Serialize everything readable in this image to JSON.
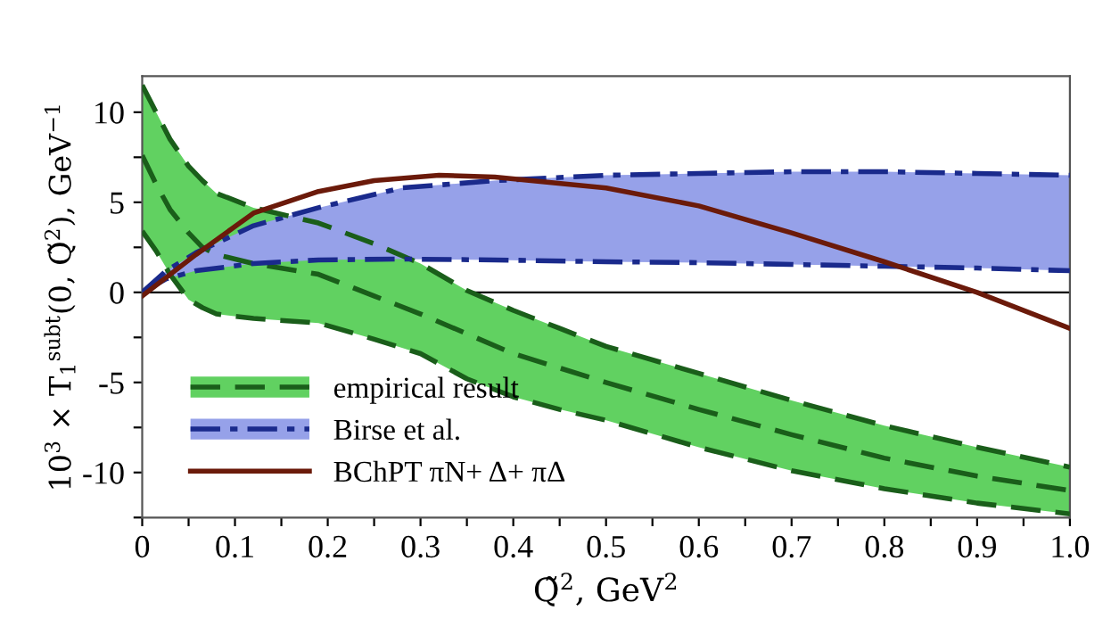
{
  "chart_data": {
    "type": "line",
    "xlabel": "Q̃$^{2}$, GeV$^{2}$",
    "ylabel": "10$^{3}$ × T$_{1}$$^{subt}$(0, Q̃$^{2}$), GeV$^{−1}$",
    "xlim": [
      0,
      1.0
    ],
    "ylim": [
      -12.5,
      12.0
    ],
    "xticks": [
      {
        "value": 0,
        "label": "0"
      },
      {
        "value": 0.05,
        "label": null
      },
      {
        "value": 0.1,
        "label": "0.1"
      },
      {
        "value": 0.15,
        "label": null
      },
      {
        "value": 0.2,
        "label": "0.2"
      },
      {
        "value": 0.25,
        "label": null
      },
      {
        "value": 0.3,
        "label": "0.3"
      },
      {
        "value": 0.35,
        "label": null
      },
      {
        "value": 0.4,
        "label": "0.4"
      },
      {
        "value": 0.45,
        "label": null
      },
      {
        "value": 0.5,
        "label": "0.5"
      },
      {
        "value": 0.55,
        "label": null
      },
      {
        "value": 0.6,
        "label": "0.6"
      },
      {
        "value": 0.65,
        "label": null
      },
      {
        "value": 0.7,
        "label": "0.7"
      },
      {
        "value": 0.75,
        "label": null
      },
      {
        "value": 0.8,
        "label": "0.8"
      },
      {
        "value": 0.85,
        "label": null
      },
      {
        "value": 0.9,
        "label": "0.9"
      },
      {
        "value": 0.95,
        "label": null
      },
      {
        "value": 1.0,
        "label": "1.0"
      }
    ],
    "yticks": [
      {
        "value": -12.5,
        "label": null
      },
      -10,
      {
        "value": -7.5,
        "label": null
      },
      -5,
      {
        "value": -2.5,
        "label": null
      },
      0,
      {
        "value": 2.5,
        "label": null
      },
      5,
      {
        "value": 7.5,
        "label": null
      },
      10
    ],
    "ref_lines": [
      {
        "axis": "y",
        "value": 0,
        "color": "#000000",
        "line_style": "solid"
      }
    ],
    "grid": false,
    "legend": "bottom left",
    "marker": "none",
    "series": [
      {
        "name": "empirical result",
        "color": "#1a5e1a",
        "line_style": "dashed",
        "x": [
          0,
          0.015,
          0.03,
          0.05,
          0.065,
          0.08,
          0.12,
          0.19,
          0.25,
          0.3,
          0.35,
          0.4,
          0.45,
          0.5,
          0.6,
          0.7,
          0.8,
          0.9,
          1.0
        ],
        "values": [
          7.6,
          6.0,
          4.6,
          3.3,
          2.5,
          2.1,
          1.6,
          1.0,
          -0.2,
          -1.2,
          -2.3,
          -3.4,
          -4.2,
          -5.0,
          -6.5,
          -7.9,
          -9.2,
          -10.2,
          -11.0
        ],
        "upper": [
          11.5,
          10.0,
          8.5,
          7.0,
          6.2,
          5.5,
          4.7,
          3.85,
          2.7,
          1.6,
          0.1,
          -1.0,
          -2.0,
          -3.0,
          -4.5,
          -6.0,
          -7.4,
          -8.6,
          -9.7
        ],
        "lower": [
          3.4,
          2.3,
          1.0,
          -0.4,
          -0.85,
          -1.2,
          -1.45,
          -1.7,
          -2.6,
          -3.4,
          -4.8,
          -5.8,
          -6.5,
          -7.1,
          -8.6,
          -9.9,
          -10.9,
          -11.7,
          -12.3
        ]
      },
      {
        "name": "Birse et al.",
        "color": "#1a2a8c",
        "line_style": "dashdot",
        "x": [
          0,
          0.026,
          0.058,
          0.12,
          0.19,
          0.28,
          0.38,
          0.5,
          0.6,
          0.7,
          0.8,
          0.9,
          1.0
        ],
        "values": [
          0,
          1.2,
          2.2,
          3.7,
          4.7,
          5.8,
          6.2,
          6.5,
          6.6,
          6.7,
          6.7,
          6.6,
          6.5
        ],
        "upper": [
          0,
          1.2,
          2.2,
          3.7,
          4.7,
          5.8,
          6.2,
          6.5,
          6.6,
          6.7,
          6.7,
          6.6,
          6.5
        ],
        "lower": [
          0,
          0.75,
          1.2,
          1.6,
          1.8,
          1.85,
          1.8,
          1.7,
          1.65,
          1.55,
          1.45,
          1.35,
          1.2
        ]
      },
      {
        "color": "#1a5e1a",
        "line_style": "dashed",
        "x": [
          0,
          0.015,
          0.03,
          0.05,
          0.065,
          0.08,
          0.12,
          0.19,
          0.25,
          0.3,
          0.35,
          0.4,
          0.45,
          0.5,
          0.6,
          0.7,
          0.8,
          0.9,
          1.0
        ],
        "values": [
          11.5,
          10.0,
          8.5,
          7.0,
          6.2,
          5.5,
          4.7,
          3.85,
          2.7,
          1.6,
          0.1,
          -1.0,
          -2.0,
          -3.0,
          -4.5,
          -6.0,
          -7.4,
          -8.6,
          -9.7
        ]
      },
      {
        "color": "#1a5e1a",
        "line_style": "dashed",
        "x": [
          0,
          0.015,
          0.03,
          0.05,
          0.065,
          0.08,
          0.12,
          0.19,
          0.25,
          0.3,
          0.35,
          0.4,
          0.45,
          0.5,
          0.6,
          0.7,
          0.8,
          0.9,
          1.0
        ],
        "values": [
          3.4,
          2.3,
          1.0,
          -0.4,
          -0.85,
          -1.2,
          -1.45,
          -1.7,
          -2.6,
          -3.4,
          -4.8,
          -5.8,
          -6.5,
          -7.1,
          -8.6,
          -9.9,
          -10.9,
          -11.7,
          -12.3
        ]
      },
      {
        "color": "#1a2a8c",
        "line_style": "dashdot",
        "x": [
          0,
          0.026,
          0.058,
          0.12,
          0.19,
          0.28,
          0.38,
          0.5,
          0.6,
          0.7,
          0.8,
          0.9,
          1.0
        ],
        "values": [
          0,
          0.75,
          1.2,
          1.6,
          1.8,
          1.85,
          1.8,
          1.7,
          1.65,
          1.55,
          1.45,
          1.35,
          1.2
        ]
      },
      {
        "name": "BChPT πN+ Δ+ πΔ",
        "color": "#6b1a0a",
        "line_style": "solid",
        "x": [
          0,
          0.058,
          0.12,
          0.19,
          0.25,
          0.32,
          0.38,
          0.5,
          0.6,
          0.7,
          0.8,
          0.9,
          1.0
        ],
        "values": [
          -0.2,
          2.1,
          4.4,
          5.6,
          6.2,
          6.5,
          6.4,
          5.8,
          4.8,
          3.3,
          1.7,
          0.0,
          -2.0
        ]
      }
    ]
  }
}
